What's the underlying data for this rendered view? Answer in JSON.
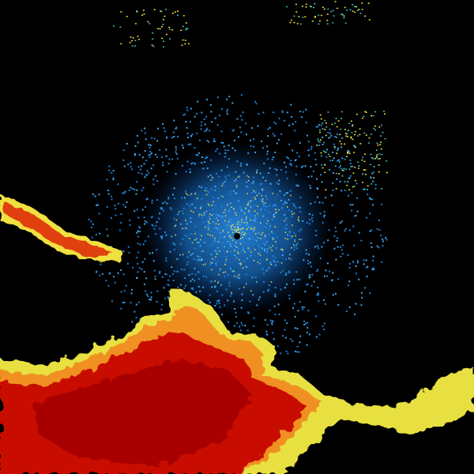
{
  "image": {
    "kind": "radar-reflectivity",
    "colors": {
      "background": "#000000",
      "clutter_blue": "#1a7fd6",
      "clutter_light": "#3fa3e8",
      "cyan": "#40c0c0",
      "yellow": "#f0e040",
      "orange": "#f08020",
      "red": "#c81000",
      "dark_red": "#a80000",
      "site_marker": "#000000"
    }
  }
}
